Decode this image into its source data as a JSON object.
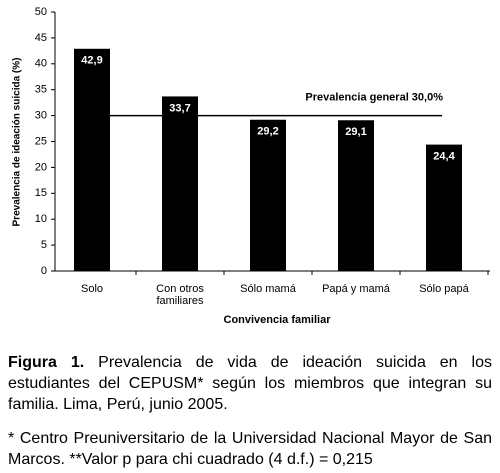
{
  "chart_data": {
    "type": "bar",
    "y_label": "Prevalencia de ideación suicida (%)",
    "x_label": "Convivencia familiar",
    "categories": [
      "Solo",
      "Con otros familiares",
      "Sólo mamá",
      "Papá y mamá",
      "Sólo papá"
    ],
    "values": [
      42.9,
      33.7,
      29.2,
      29.1,
      24.4
    ],
    "value_labels": [
      "42,9",
      "33,7",
      "29,2",
      "29,1",
      "24,4"
    ],
    "color": "#000000",
    "ylim": [
      0,
      50
    ],
    "yticks": [
      0,
      5,
      10,
      15,
      20,
      25,
      30,
      35,
      40,
      45,
      50
    ],
    "grid": false,
    "reference_line": {
      "value": 30,
      "label": "Prevalencia general 30,0%"
    }
  },
  "caption": {
    "label": "Figura 1.",
    "text": "Prevalencia de vida de ideación suicida en los estudiantes del CEPUSM* según los miembros que integran su familia. Lima, Perú, junio 2005."
  },
  "footnote": "* Centro Preuniversitario de la Universidad Nacional Mayor de San Marcos. **Valor p para chi cuadrado (4 d.f.) = 0,215"
}
